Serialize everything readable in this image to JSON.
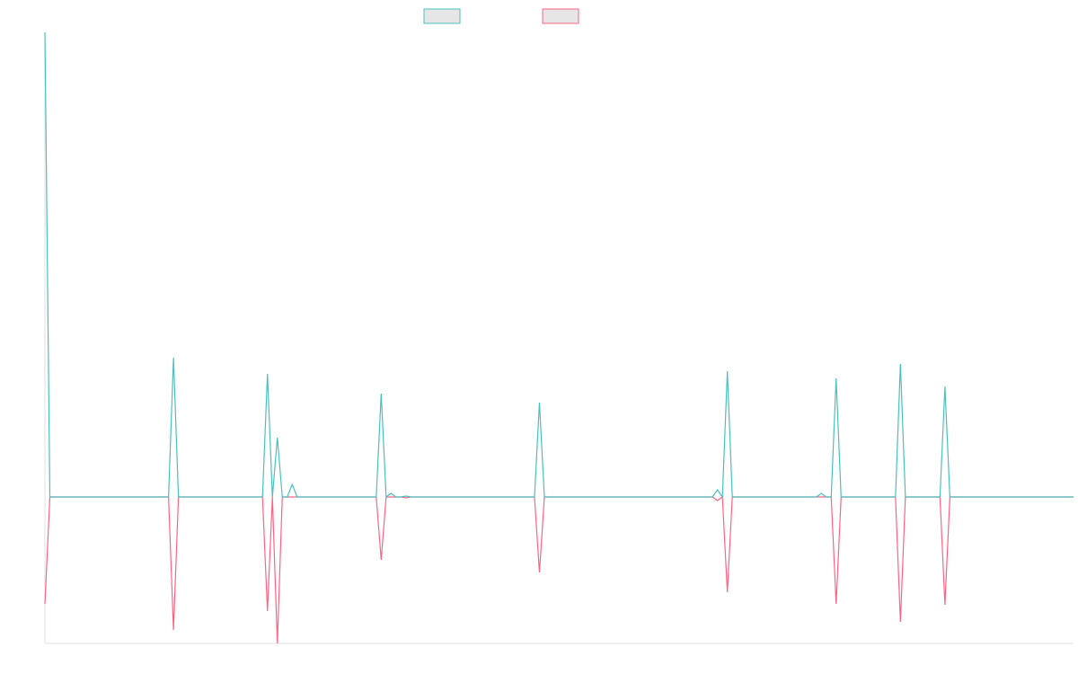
{
  "chart_data": {
    "type": "line",
    "x": [
      0,
      1,
      25,
      26,
      27,
      44,
      45,
      46,
      47,
      48,
      49,
      50,
      51,
      67,
      68,
      69,
      70,
      71,
      72,
      73,
      74,
      99,
      100,
      101,
      135,
      136,
      137,
      138,
      139,
      156,
      157,
      158,
      159,
      160,
      161,
      172,
      173,
      174,
      181,
      182,
      183,
      208
    ],
    "series": [
      {
        "color": "#4bc0c0",
        "values": [
          5.17,
          0,
          0,
          1.55,
          0,
          0,
          1.37,
          0,
          0.66,
          0,
          0,
          0.14,
          0,
          0,
          1.15,
          0,
          0.04,
          0,
          0,
          0.01,
          0,
          0,
          1.05,
          0,
          0,
          0.08,
          0,
          1.4,
          0,
          0,
          0.04,
          0,
          0,
          1.32,
          0,
          0,
          1.48,
          0,
          0,
          1.23,
          0,
          0
        ]
      },
      {
        "color": "#ff6384",
        "values": [
          -1.19,
          0,
          0,
          -1.48,
          0,
          0,
          -1.27,
          0,
          -1.63,
          0,
          0,
          0,
          0,
          0,
          -0.7,
          0,
          0,
          0,
          0,
          -0.01,
          0,
          0,
          -0.84,
          0,
          0,
          -0.04,
          0,
          -1.06,
          0,
          0,
          0,
          0,
          0,
          -1.19,
          0,
          0,
          -1.39,
          0,
          0,
          -1.2,
          0,
          0
        ]
      }
    ],
    "xlim": [
      0,
      208
    ],
    "ylim": [
      -1.63,
      5.17
    ]
  }
}
